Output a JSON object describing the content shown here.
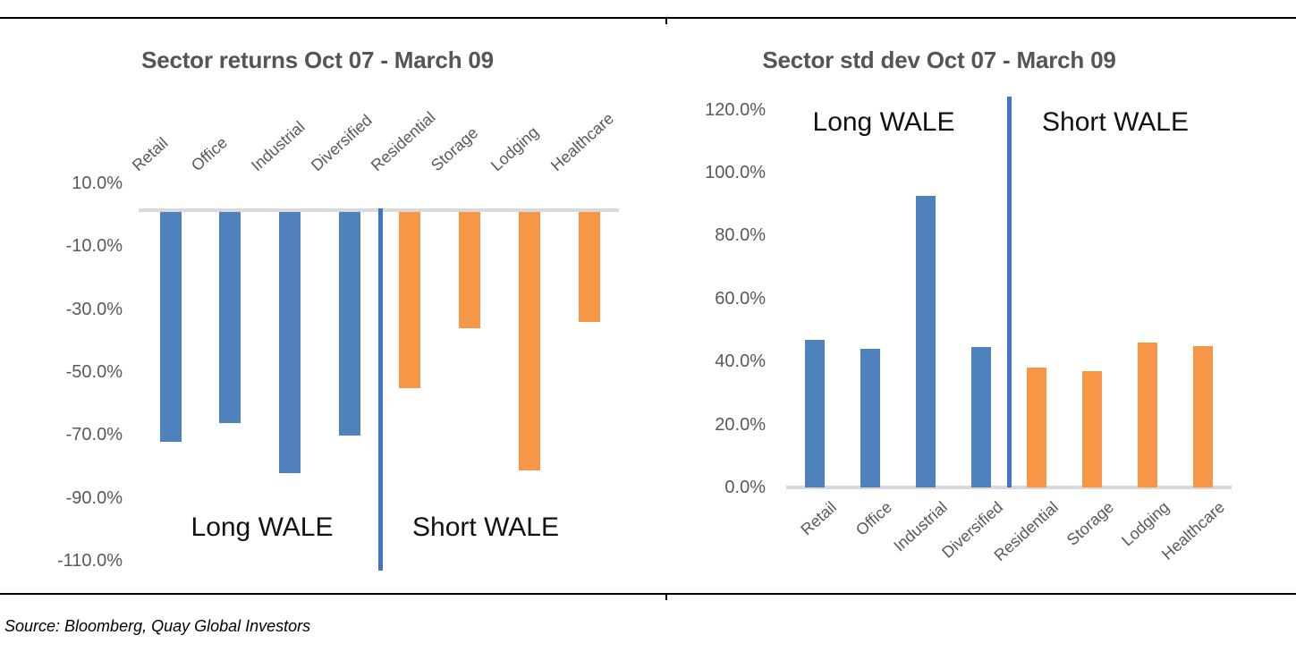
{
  "source_note": "Source: Bloomberg, Quay Global Investors",
  "colors": {
    "long_wale_bar": "#4F81BD",
    "short_wale_bar": "#F79646",
    "divider_line": "#4472C4",
    "axis_line": "#D9D9D9",
    "title_text": "#555555",
    "axis_text": "#595959"
  },
  "chart_data": [
    {
      "type": "bar",
      "title": "Sector returns Oct 07 - March 09",
      "categories": [
        "Retail",
        "Office",
        "Industrial",
        "Diversified",
        "Residential",
        "Storage",
        "Lodging",
        "Healthcare"
      ],
      "values": [
        -73,
        -67,
        -83,
        -71,
        -56,
        -37,
        -82,
        -35
      ],
      "value_unit": "%",
      "ylim": [
        -110,
        10
      ],
      "yticks": [
        "10.0%",
        "-10.0%",
        "-30.0%",
        "-50.0%",
        "-70.0%",
        "-90.0%",
        "-110.0%"
      ],
      "grid": false,
      "category_labels_position": "top",
      "category_labels_rotated": true,
      "divider_between": [
        "Diversified",
        "Residential"
      ],
      "groups": [
        {
          "label": "Long WALE",
          "categories": [
            "Retail",
            "Office",
            "Industrial",
            "Diversified"
          ],
          "bar_color": "#4F81BD"
        },
        {
          "label": "Short WALE",
          "categories": [
            "Residential",
            "Storage",
            "Lodging",
            "Healthcare"
          ],
          "bar_color": "#F79646"
        }
      ]
    },
    {
      "type": "bar",
      "title": "Sector std dev Oct 07 - March 09",
      "categories": [
        "Retail",
        "Office",
        "Industrial",
        "Diversified",
        "Residential",
        "Storage",
        "Lodging",
        "Healthcare"
      ],
      "values": [
        47,
        44,
        92.5,
        44.5,
        38,
        37,
        46,
        45
      ],
      "value_unit": "%",
      "ylim": [
        0,
        120
      ],
      "yticks": [
        "120.0%",
        "100.0%",
        "80.0%",
        "60.0%",
        "40.0%",
        "20.0%",
        "0.0%"
      ],
      "grid": false,
      "category_labels_position": "bottom",
      "category_labels_rotated": true,
      "divider_between": [
        "Diversified",
        "Residential"
      ],
      "groups": [
        {
          "label": "Long WALE",
          "categories": [
            "Retail",
            "Office",
            "Industrial",
            "Diversified"
          ],
          "bar_color": "#4F81BD"
        },
        {
          "label": "Short WALE",
          "categories": [
            "Residential",
            "Storage",
            "Lodging",
            "Healthcare"
          ],
          "bar_color": "#F79646"
        }
      ]
    }
  ]
}
